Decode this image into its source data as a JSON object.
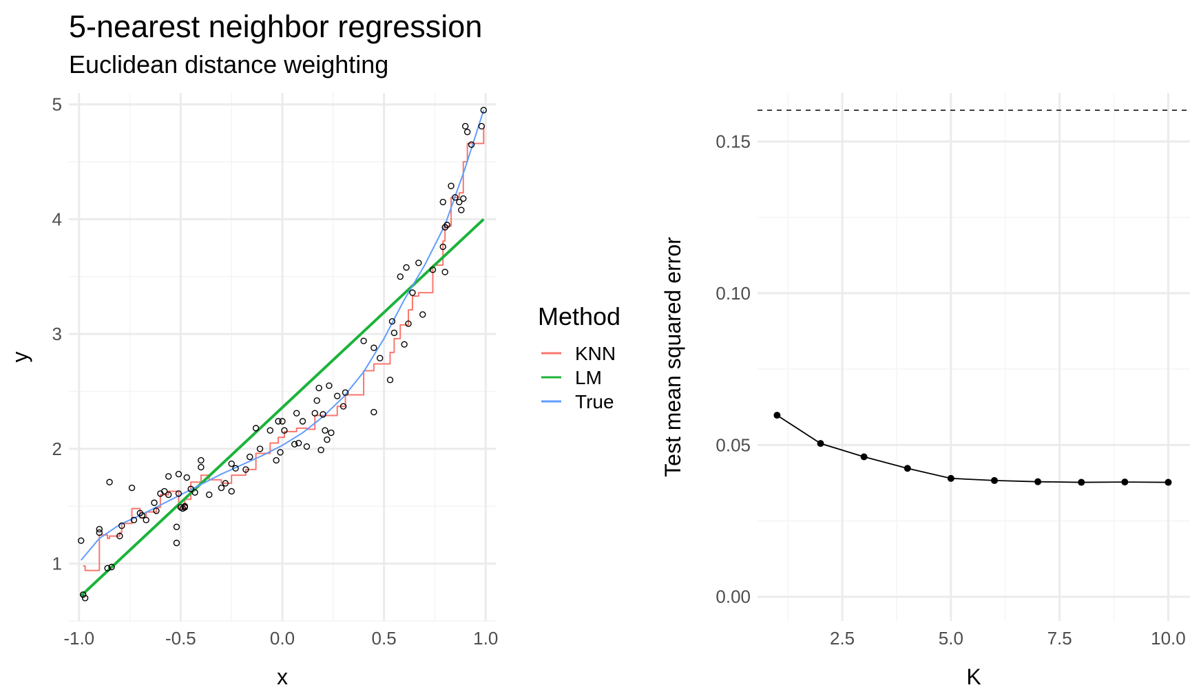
{
  "title": "5-nearest neighbor regression",
  "subtitle": "Euclidean distance weighting",
  "colors": {
    "KNN": "#F8766D",
    "LM": "#1BB33A",
    "True": "#619CFF",
    "grid_major": "#EBEBEB",
    "grid_minor": "#F4F4F4"
  },
  "chart_data": [
    {
      "type": "scatter",
      "xlabel": "x",
      "ylabel": "y",
      "xlim": [
        -1.05,
        1.05
      ],
      "ylim": [
        0.5,
        5.1
      ],
      "x_ticks": [
        -1.0,
        -0.5,
        0.0,
        0.5,
        1.0
      ],
      "x_tick_labels": [
        "-1.0",
        "-0.5",
        "0.0",
        "0.5",
        "1.0"
      ],
      "y_ticks": [
        1,
        2,
        3,
        4,
        5
      ],
      "y_tick_labels": [
        "1",
        "2",
        "3",
        "4",
        "5"
      ],
      "grid": true,
      "legend": {
        "title": "Method",
        "position": "right",
        "entries": [
          "KNN",
          "LM",
          "True"
        ]
      },
      "points": [
        [
          -0.99,
          1.2
        ],
        [
          -0.98,
          0.73
        ],
        [
          -0.97,
          0.7
        ],
        [
          -0.9,
          1.27
        ],
        [
          -0.9,
          1.3
        ],
        [
          -0.86,
          0.96
        ],
        [
          -0.85,
          1.71
        ],
        [
          -0.84,
          0.97
        ],
        [
          -0.8,
          1.24
        ],
        [
          -0.79,
          1.33
        ],
        [
          -0.74,
          1.66
        ],
        [
          -0.73,
          1.38
        ],
        [
          -0.7,
          1.44
        ],
        [
          -0.69,
          1.42
        ],
        [
          -0.67,
          1.38
        ],
        [
          -0.63,
          1.53
        ],
        [
          -0.62,
          1.46
        ],
        [
          -0.6,
          1.61
        ],
        [
          -0.58,
          1.63
        ],
        [
          -0.56,
          1.76
        ],
        [
          -0.56,
          1.6
        ],
        [
          -0.52,
          1.32
        ],
        [
          -0.52,
          1.18
        ],
        [
          -0.51,
          1.78
        ],
        [
          -0.51,
          1.61
        ],
        [
          -0.5,
          1.49
        ],
        [
          -0.49,
          1.48
        ],
        [
          -0.48,
          1.5
        ],
        [
          -0.48,
          1.49
        ],
        [
          -0.47,
          1.75
        ],
        [
          -0.45,
          1.65
        ],
        [
          -0.43,
          1.62
        ],
        [
          -0.4,
          1.9
        ],
        [
          -0.4,
          1.84
        ],
        [
          -0.36,
          1.6
        ],
        [
          -0.3,
          1.66
        ],
        [
          -0.28,
          1.7
        ],
        [
          -0.25,
          1.87
        ],
        [
          -0.25,
          1.63
        ],
        [
          -0.23,
          1.83
        ],
        [
          -0.18,
          1.82
        ],
        [
          -0.16,
          1.93
        ],
        [
          -0.13,
          2.18
        ],
        [
          -0.11,
          2.0
        ],
        [
          -0.06,
          2.16
        ],
        [
          -0.03,
          1.9
        ],
        [
          -0.02,
          2.24
        ],
        [
          -0.01,
          1.97
        ],
        [
          0.0,
          2.24
        ],
        [
          0.01,
          2.16
        ],
        [
          0.06,
          2.04
        ],
        [
          0.07,
          2.31
        ],
        [
          0.08,
          2.05
        ],
        [
          0.1,
          2.24
        ],
        [
          0.12,
          2.02
        ],
        [
          0.16,
          2.31
        ],
        [
          0.17,
          2.42
        ],
        [
          0.18,
          2.53
        ],
        [
          0.19,
          1.99
        ],
        [
          0.2,
          2.3
        ],
        [
          0.21,
          2.16
        ],
        [
          0.22,
          2.08
        ],
        [
          0.23,
          2.55
        ],
        [
          0.24,
          2.14
        ],
        [
          0.27,
          2.46
        ],
        [
          0.3,
          2.37
        ],
        [
          0.31,
          2.49
        ],
        [
          0.4,
          2.94
        ],
        [
          0.45,
          2.32
        ],
        [
          0.45,
          2.88
        ],
        [
          0.48,
          2.79
        ],
        [
          0.53,
          2.6
        ],
        [
          0.54,
          3.11
        ],
        [
          0.55,
          3.01
        ],
        [
          0.58,
          3.5
        ],
        [
          0.6,
          2.91
        ],
        [
          0.61,
          3.58
        ],
        [
          0.62,
          3.09
        ],
        [
          0.64,
          3.36
        ],
        [
          0.67,
          3.62
        ],
        [
          0.69,
          3.17
        ],
        [
          0.74,
          3.56
        ],
        [
          0.79,
          3.76
        ],
        [
          0.79,
          4.15
        ],
        [
          0.8,
          3.54
        ],
        [
          0.8,
          3.93
        ],
        [
          0.81,
          3.95
        ],
        [
          0.83,
          4.29
        ],
        [
          0.85,
          4.19
        ],
        [
          0.87,
          4.15
        ],
        [
          0.88,
          4.08
        ],
        [
          0.89,
          4.18
        ],
        [
          0.9,
          4.81
        ],
        [
          0.91,
          4.76
        ],
        [
          0.93,
          4.65
        ],
        [
          0.98,
          4.81
        ],
        [
          0.99,
          4.95
        ]
      ],
      "series": [
        {
          "name": "KNN",
          "type": "step",
          "x": [
            -0.98,
            -0.97,
            -0.9,
            -0.86,
            -0.85,
            -0.8,
            -0.79,
            -0.74,
            -0.7,
            -0.67,
            -0.62,
            -0.6,
            -0.56,
            -0.51,
            -0.48,
            -0.45,
            -0.4,
            -0.36,
            -0.3,
            -0.25,
            -0.18,
            -0.13,
            -0.06,
            -0.02,
            0.01,
            0.07,
            0.12,
            0.16,
            0.22,
            0.27,
            0.31,
            0.4,
            0.45,
            0.53,
            0.55,
            0.58,
            0.62,
            0.64,
            0.67,
            0.74,
            0.79,
            0.8,
            0.83,
            0.87,
            0.89,
            0.91,
            0.93,
            0.99
          ],
          "y": [
            0.98,
            0.94,
            1.25,
            1.22,
            1.24,
            1.27,
            1.35,
            1.48,
            1.4,
            1.45,
            1.49,
            1.6,
            1.63,
            1.48,
            1.56,
            1.71,
            1.77,
            1.73,
            1.7,
            1.77,
            1.82,
            1.96,
            2.05,
            2.1,
            2.15,
            2.18,
            2.17,
            2.29,
            2.29,
            2.37,
            2.47,
            2.68,
            2.74,
            2.84,
            2.96,
            3.08,
            3.21,
            3.33,
            3.36,
            3.6,
            3.81,
            3.94,
            4.19,
            4.23,
            4.5,
            4.66,
            4.66,
            4.8
          ]
        },
        {
          "name": "LM",
          "type": "line",
          "x": [
            -0.99,
            0.99
          ],
          "y": [
            0.72,
            4.0
          ]
        },
        {
          "name": "True",
          "type": "line",
          "x": [
            -0.99,
            -0.9,
            -0.8,
            -0.7,
            -0.6,
            -0.5,
            -0.4,
            -0.3,
            -0.2,
            -0.1,
            0.0,
            0.1,
            0.2,
            0.3,
            0.4,
            0.5,
            0.6,
            0.7,
            0.8,
            0.9,
            0.99
          ],
          "y": [
            1.03,
            1.22,
            1.34,
            1.42,
            1.51,
            1.6,
            1.69,
            1.78,
            1.86,
            1.94,
            2.03,
            2.14,
            2.28,
            2.45,
            2.67,
            2.96,
            3.3,
            3.6,
            3.95,
            4.45,
            4.95
          ]
        }
      ]
    },
    {
      "type": "line",
      "xlabel": "K",
      "ylabel": "Test mean squared error",
      "xlim": [
        0.55,
        10.5
      ],
      "ylim": [
        -0.008,
        0.166
      ],
      "x_ticks": [
        2.5,
        5.0,
        7.5,
        10.0
      ],
      "x_tick_labels": [
        "2.5",
        "5.0",
        "7.5",
        "10.0"
      ],
      "y_ticks": [
        0.0,
        0.05,
        0.1,
        0.15
      ],
      "y_tick_labels": [
        "0.00",
        "0.05",
        "0.10",
        "0.15"
      ],
      "grid": true,
      "hline": 0.1603,
      "x": [
        1,
        2,
        3,
        4,
        5,
        6,
        7,
        8,
        9,
        10
      ],
      "values": [
        0.0598,
        0.0505,
        0.0461,
        0.0423,
        0.039,
        0.0383,
        0.0379,
        0.0377,
        0.0378,
        0.0377
      ]
    }
  ]
}
